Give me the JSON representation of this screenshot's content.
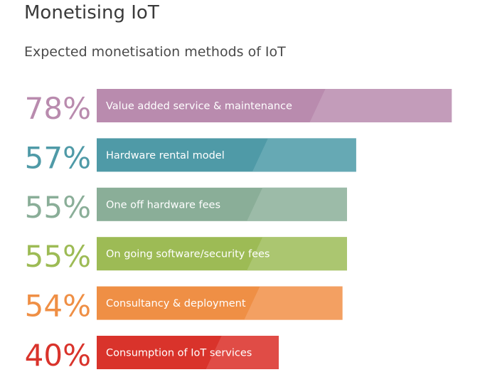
{
  "header": {
    "title": "Monetising IoT",
    "subtitle": "Expected monetisation methods of IoT"
  },
  "chart_data": {
    "type": "bar",
    "orientation": "horizontal",
    "title": "Monetising IoT",
    "subtitle": "Expected monetisation methods of IoT",
    "xlim": [
      0,
      100
    ],
    "unit": "%",
    "categories": [
      "Value added service & maintenance",
      "Hardware rental model",
      "One off hardware fees",
      "On going software/security fees",
      "Consultancy & deployment",
      "Consumption of IoT services"
    ],
    "values": [
      78,
      57,
      55,
      55,
      54,
      40
    ],
    "value_labels": [
      "78%",
      "57%",
      "55%",
      "55%",
      "54%",
      "40%"
    ],
    "colors": [
      "#b98bae",
      "#4f9aa7",
      "#8aae98",
      "#9dbb55",
      "#ef8f45",
      "#d9332b"
    ],
    "highlight_colors": [
      "#c7a1bd",
      "#6eadb8",
      "#a1bfad",
      "#b0c979",
      "#f4a66c",
      "#e25650"
    ],
    "grid": false,
    "legend": "none"
  }
}
